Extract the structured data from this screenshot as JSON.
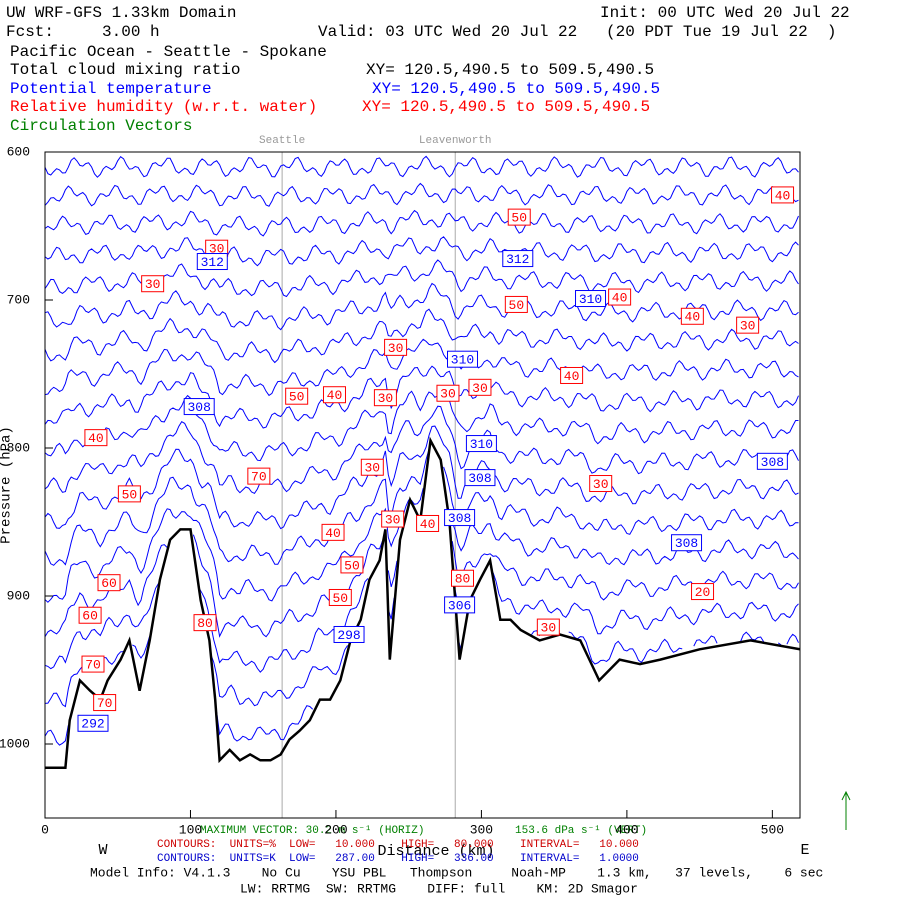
{
  "chart_data": {
    "type": "cross-section",
    "title": "UW WRF-GFS 1.33km Domain",
    "init": "Init: 00 UTC Wed 20 Jul 22",
    "forecast": "Fcst:     3.00 h",
    "valid": "Valid: 03 UTC Wed 20 Jul 22   (20 PDT Tue 19 Jul 22  )",
    "subtitle": "Pacific Ocean - Seattle - Spokane",
    "fields": [
      {
        "name": "Total cloud mixing ratio",
        "xy": "XY= 120.5,490.5 to 509.5,490.5",
        "color": "#000000"
      },
      {
        "name": "Potential temperature",
        "xy": "XY= 120.5,490.5 to 509.5,490.5",
        "color": "#0000ff"
      },
      {
        "name": "Relative humidity (w.r.t. water)",
        "xy": "XY= 120.5,490.5 to 509.5,490.5",
        "color": "#ff0000"
      },
      {
        "name": "Circulation Vectors",
        "color": "#008000"
      }
    ],
    "xlabel": "Distance (km)",
    "ylabel": "Pressure (hPa)",
    "xlim": [
      0,
      519
    ],
    "ylim": [
      600,
      1050
    ],
    "xticks": [
      0,
      100,
      200,
      300,
      400,
      500
    ],
    "yticks": [
      600,
      700,
      800,
      900,
      1000
    ],
    "west": "W",
    "east": "E",
    "locations": [
      {
        "name": "Seattle",
        "x": 163
      },
      {
        "name": "Leavenworth",
        "x": 282
      }
    ],
    "terrain": {
      "x": [
        0,
        14,
        17,
        24,
        31,
        38,
        43,
        52,
        58,
        65,
        72,
        79,
        86,
        93,
        100,
        107,
        113,
        117,
        120,
        127,
        134,
        141,
        148,
        155,
        162,
        168,
        175,
        182,
        189,
        196,
        203,
        210,
        217,
        223,
        230,
        234,
        237,
        244,
        251,
        258,
        265,
        272,
        278,
        285,
        292,
        299,
        306,
        313,
        320,
        327,
        340,
        354,
        368,
        381,
        395,
        409,
        423,
        450,
        485,
        519
      ],
      "values": [
        1016,
        1016,
        984,
        957,
        964,
        970,
        957,
        943,
        930,
        964,
        930,
        889,
        862,
        855,
        855,
        903,
        930,
        970,
        1011,
        1004,
        1011,
        1007,
        1011,
        1011,
        1007,
        997,
        991,
        984,
        970,
        970,
        957,
        930,
        916,
        889,
        876,
        855,
        943,
        862,
        835,
        849,
        795,
        808,
        849,
        943,
        903,
        889,
        876,
        916,
        916,
        923,
        930,
        926,
        930,
        957,
        943,
        946,
        943,
        936,
        930,
        936
      ]
    },
    "theta_labels": {
      "values": [
        312,
        308,
        312,
        310,
        310,
        310,
        308,
        308,
        306,
        298,
        308,
        308,
        292
      ],
      "x": [
        115,
        106,
        325,
        375,
        287,
        300,
        299,
        285,
        285,
        209,
        441,
        500,
        33
      ],
      "p": [
        674,
        772,
        672,
        699,
        740,
        797,
        820,
        847,
        906,
        926,
        864,
        809,
        986
      ]
    },
    "rh_labels": {
      "values": [
        40,
        50,
        30,
        30,
        40,
        50,
        40,
        30,
        30,
        30,
        40,
        50,
        40,
        30,
        30,
        40,
        70,
        30,
        30,
        50,
        30,
        40,
        40,
        50,
        60,
        50,
        80,
        20,
        60,
        80,
        30,
        70,
        70
      ],
      "x": [
        507,
        326,
        118,
        74,
        395,
        324,
        445,
        483,
        241,
        299,
        362,
        173,
        199,
        234,
        277,
        35,
        147,
        225,
        382,
        58,
        239,
        263,
        198,
        211,
        44,
        203,
        287,
        452,
        31,
        110,
        346,
        33,
        41
      ],
      "p": [
        629,
        644,
        665,
        689,
        698,
        703,
        711,
        717,
        732,
        759,
        751,
        765,
        764,
        766,
        763,
        793,
        819,
        813,
        824,
        831,
        848,
        851,
        857,
        879,
        891,
        901,
        888,
        897,
        913,
        918,
        921,
        946,
        972
      ]
    },
    "max_vector": "MAXIMUM VECTOR: 30.2 m s⁻¹ (HORIZ)",
    "max_vector_vert": "153.6 dPa s⁻¹ (VERT)",
    "rh_contours": "CONTOURS:  UNITS=%  LOW=   10.000    HIGH=   80.000    INTERVAL=   10.000",
    "theta_contours": "CONTOURS:  UNITS=K  LOW=   287.00    HIGH=   336.00    INTERVAL=   1.0000",
    "model_info": "Model Info: V4.1.3    No Cu    YSU PBL   Thompson     Noah-MP    1.3 km,   37 levels,    6 sec",
    "physics": "LW: RRTMG  SW: RRTMG    DIFF: full    KM: 2D Smagor"
  }
}
